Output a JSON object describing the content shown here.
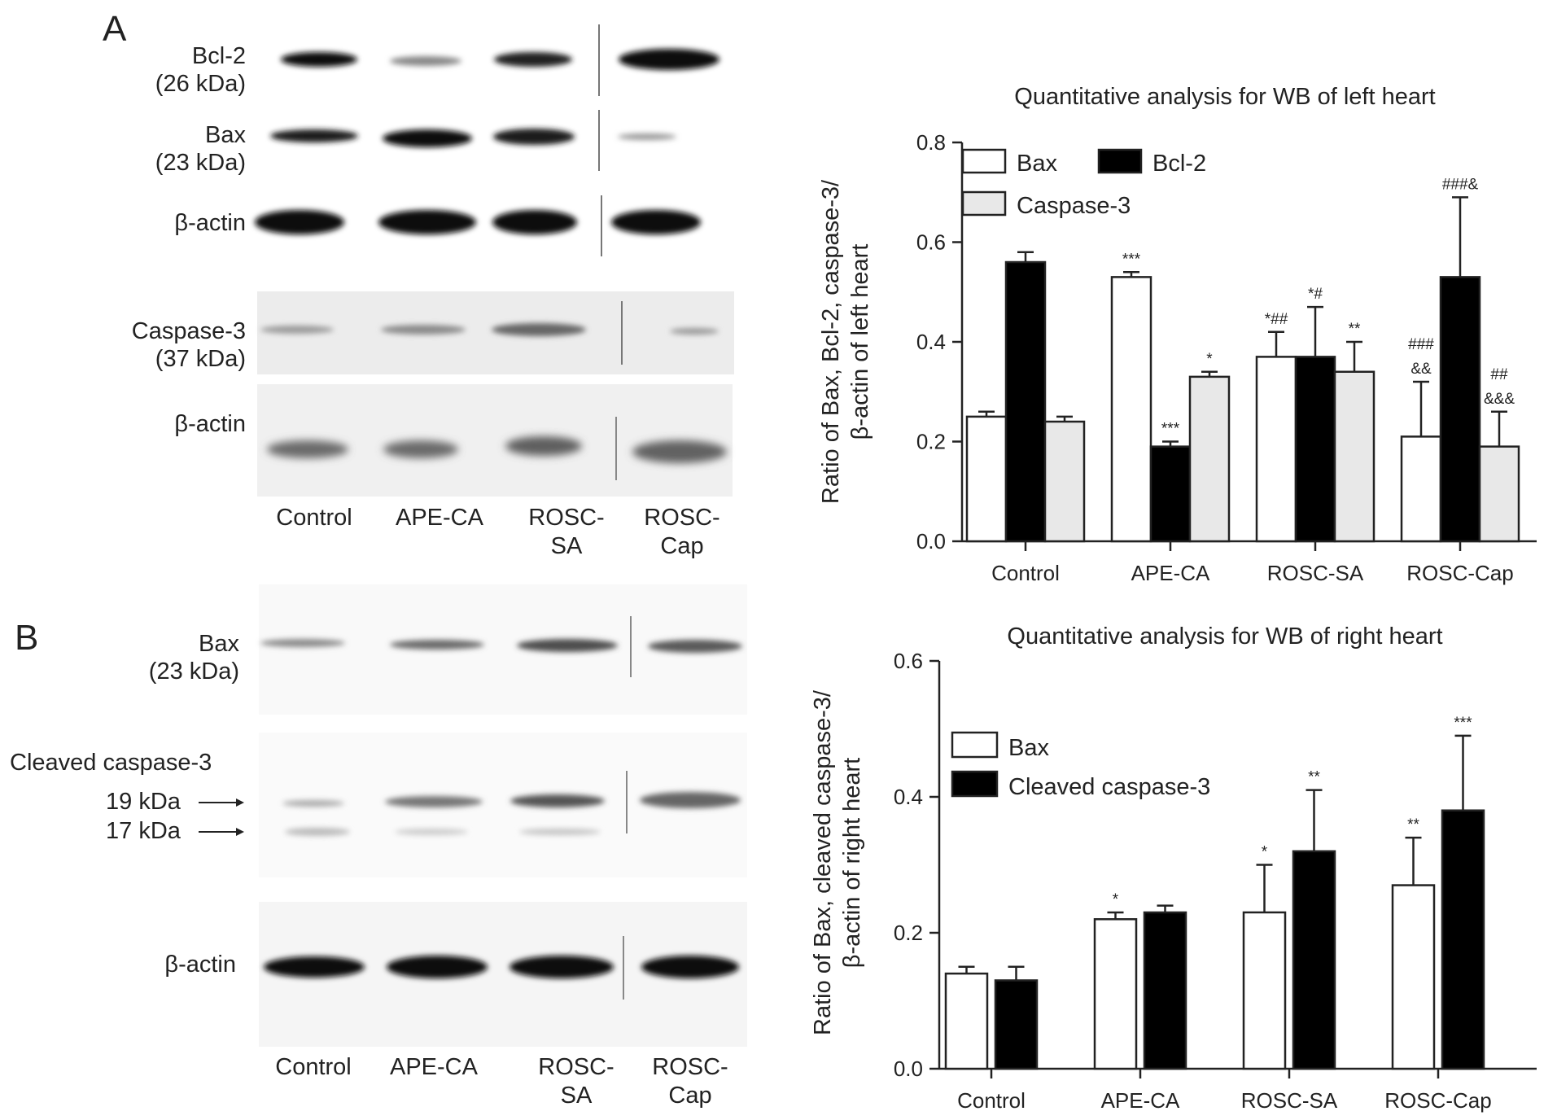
{
  "panels": {
    "A": {
      "label": "A",
      "blot_labels": {
        "bcl2": [
          "Bcl-2",
          "(26 kDa)"
        ],
        "bax": [
          "Bax",
          "(23 kDa)"
        ],
        "actin1": [
          "β-actin"
        ],
        "casp3": [
          "Caspase-3",
          "(37 kDa)"
        ],
        "actin2": [
          "β-actin"
        ]
      },
      "lanes": [
        [
          "Control"
        ],
        [
          "APE-CA"
        ],
        [
          "ROSC-",
          "SA"
        ],
        [
          "ROSC-",
          "Cap"
        ]
      ]
    },
    "B": {
      "label": "B",
      "blot_labels": {
        "bax": [
          "Bax",
          "(23 kDa)"
        ],
        "cleaved": "Cleaved caspase-3",
        "kda19": "19 kDa",
        "kda17": "17 kDa",
        "actin": "β-actin"
      },
      "lanes": [
        [
          "Control"
        ],
        [
          "APE-CA"
        ],
        [
          "ROSC-",
          "SA"
        ],
        [
          "ROSC-",
          "Cap"
        ]
      ]
    }
  },
  "chart_data": [
    {
      "type": "bar",
      "title": "Quantitative analysis for WB of left heart",
      "ylabel": [
        "Ratio of Bax, Bcl-2, caspase-3/",
        "β-actin of left heart"
      ],
      "xlabel": "",
      "categories": [
        "Control",
        "APE-CA",
        "ROSC-SA",
        "ROSC-Cap"
      ],
      "ylim": [
        0,
        0.8
      ],
      "yticks": [
        "0.0",
        "0.2",
        "0.4",
        "0.6",
        "0.8"
      ],
      "legend_position": "top-left",
      "grid": false,
      "series": [
        {
          "name": "Bax",
          "color": "#ffffff",
          "values": [
            0.25,
            0.53,
            0.37,
            0.21
          ],
          "errors": [
            0.01,
            0.01,
            0.05,
            0.11
          ],
          "annotations": [
            [],
            [
              "***"
            ],
            [
              "*##"
            ],
            [
              "###",
              "&&"
            ]
          ]
        },
        {
          "name": "Bcl-2",
          "color": "#000000",
          "values": [
            0.56,
            0.19,
            0.37,
            0.53
          ],
          "errors": [
            0.02,
            0.01,
            0.1,
            0.16
          ],
          "annotations": [
            [],
            [
              "***"
            ],
            [
              "*#"
            ],
            [
              "###&"
            ]
          ]
        },
        {
          "name": "Caspase-3",
          "color": "#e8e8e8",
          "values": [
            0.24,
            0.33,
            0.34,
            0.19
          ],
          "errors": [
            0.01,
            0.01,
            0.06,
            0.07
          ],
          "annotations": [
            [],
            [
              "*"
            ],
            [
              "**"
            ],
            [
              "##",
              "&&&"
            ]
          ]
        }
      ]
    },
    {
      "type": "bar",
      "title": "Quantitative analysis for WB of right heart",
      "ylabel": [
        "Ratio of Bax, cleaved caspase-3/",
        "β-actin of right heart"
      ],
      "xlabel": "",
      "categories": [
        "Control",
        "APE-CA",
        "ROSC-SA",
        "ROSC-Cap"
      ],
      "ylim": [
        0,
        0.6
      ],
      "yticks": [
        "0.0",
        "0.2",
        "0.4",
        "0.6"
      ],
      "legend_position": "top-left",
      "grid": false,
      "series": [
        {
          "name": "Bax",
          "color": "#ffffff",
          "values": [
            0.14,
            0.22,
            0.23,
            0.27
          ],
          "errors": [
            0.01,
            0.01,
            0.07,
            0.07
          ],
          "annotations": [
            [],
            [
              "*"
            ],
            [
              "*"
            ],
            [
              "**"
            ]
          ]
        },
        {
          "name": "Cleaved caspase-3",
          "color": "#000000",
          "values": [
            0.13,
            0.23,
            0.32,
            0.38
          ],
          "errors": [
            0.02,
            0.01,
            0.09,
            0.11
          ],
          "annotations": [
            [],
            [],
            [
              "**"
            ],
            [
              "***"
            ]
          ]
        }
      ]
    }
  ]
}
